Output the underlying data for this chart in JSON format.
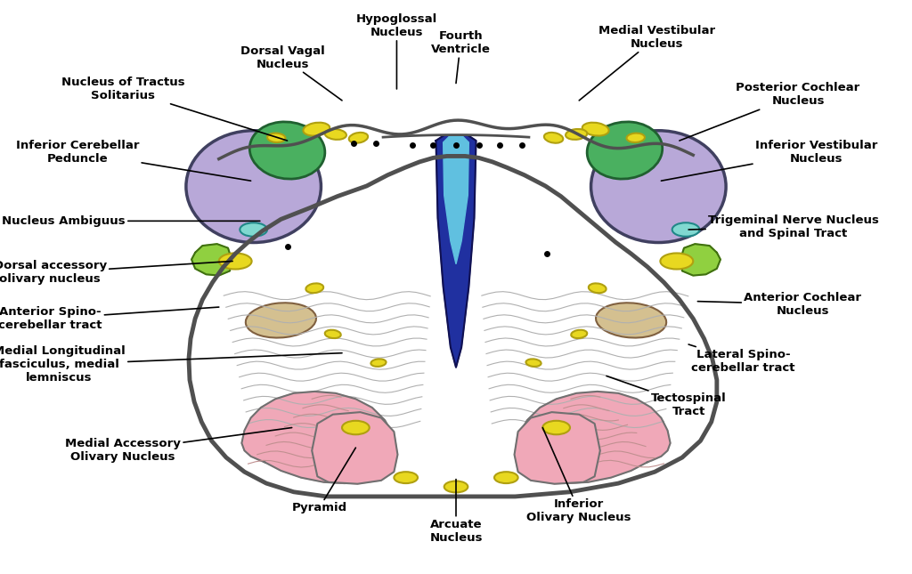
{
  "background": "#ffffff",
  "body_color": "#ffffff",
  "body_edge": "#505050",
  "purple_color": "#b8a8d8",
  "green_color": "#4ab060",
  "yellow_color": "#e8d820",
  "yellow_edge": "#b0a010",
  "pink_color": "#f0a8b8",
  "blue_dark": "#2030a0",
  "blue_light": "#60c0e0",
  "lime_color": "#90d040",
  "tan_color": "#d4c090",
  "cyan_color": "#80d8d0",
  "annotations": [
    [
      "Hypoglossal\nNucleus",
      [
        0.435,
        0.845
      ],
      [
        0.435,
        0.955
      ]
    ],
    [
      "Dorsal Vagal\nNucleus",
      [
        0.375,
        0.825
      ],
      [
        0.31,
        0.9
      ]
    ],
    [
      "Fourth\nVentricle",
      [
        0.5,
        0.855
      ],
      [
        0.505,
        0.925
      ]
    ],
    [
      "Medial Vestibular\nNucleus",
      [
        0.635,
        0.825
      ],
      [
        0.72,
        0.935
      ]
    ],
    [
      "Nucleus of Tractus\nSolitarius",
      [
        0.315,
        0.755
      ],
      [
        0.135,
        0.845
      ]
    ],
    [
      "Posterior Cochlear\nNucleus",
      [
        0.745,
        0.755
      ],
      [
        0.875,
        0.835
      ]
    ],
    [
      "Inferior Cerebellar\nPeduncle",
      [
        0.275,
        0.685
      ],
      [
        0.085,
        0.735
      ]
    ],
    [
      "Inferior Vestibular\nNucleus",
      [
        0.725,
        0.685
      ],
      [
        0.895,
        0.735
      ]
    ],
    [
      "Nucleus Ambiguus",
      [
        0.285,
        0.615
      ],
      [
        0.07,
        0.615
      ]
    ],
    [
      "Trigeminal Nerve Nucleus\nand Spinal Tract",
      [
        0.755,
        0.6
      ],
      [
        0.87,
        0.605
      ]
    ],
    [
      "Dorsal accessory\nolivary nucleus",
      [
        0.255,
        0.545
      ],
      [
        0.055,
        0.525
      ]
    ],
    [
      "Anterior Cochlear\nNucleus",
      [
        0.765,
        0.475
      ],
      [
        0.88,
        0.47
      ]
    ],
    [
      "Anterior Spino-\ncerebellar tract",
      [
        0.24,
        0.465
      ],
      [
        0.055,
        0.445
      ]
    ],
    [
      "Lateral Spino-\ncerebellar tract",
      [
        0.755,
        0.4
      ],
      [
        0.815,
        0.37
      ]
    ],
    [
      "Medial Longitudinal\nfasciculus, medial\nlemniscus",
      [
        0.375,
        0.385
      ],
      [
        0.065,
        0.365
      ]
    ],
    [
      "Tectospinal\nTract",
      [
        0.665,
        0.345
      ],
      [
        0.755,
        0.295
      ]
    ],
    [
      "Medial Accessory\nOlivary Nucleus",
      [
        0.32,
        0.255
      ],
      [
        0.135,
        0.215
      ]
    ],
    [
      "Pyramid",
      [
        0.39,
        0.22
      ],
      [
        0.35,
        0.115
      ]
    ],
    [
      "Arcuate\nNucleus",
      [
        0.5,
        0.165
      ],
      [
        0.5,
        0.075
      ]
    ],
    [
      "Inferior\nOlivary Nucleus",
      [
        0.595,
        0.255
      ],
      [
        0.635,
        0.11
      ]
    ]
  ]
}
